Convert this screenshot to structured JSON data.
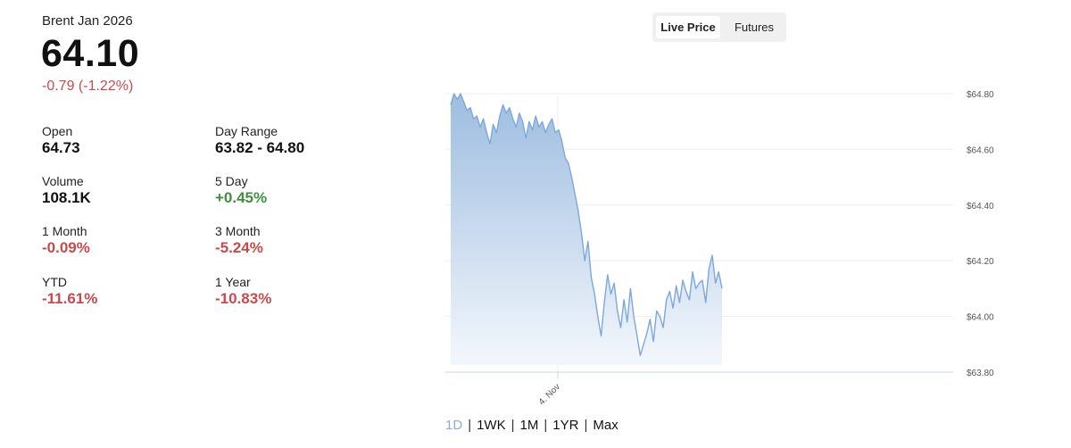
{
  "header": {
    "instrument": "Brent Jan 2026",
    "price": "64.10",
    "change": "-0.79 (-1.22%)"
  },
  "stats": [
    {
      "label": "Open",
      "value": "64.73",
      "tone": "plain"
    },
    {
      "label": "Day Range",
      "value": "63.82 - 64.80",
      "tone": "plain"
    },
    {
      "label": "Volume",
      "value": "108.1K",
      "tone": "plain"
    },
    {
      "label": "5 Day",
      "value": "+0.45%",
      "tone": "pos"
    },
    {
      "label": "1 Month",
      "value": "-0.09%",
      "tone": "neg"
    },
    {
      "label": "3 Month",
      "value": "-5.24%",
      "tone": "neg"
    },
    {
      "label": "YTD",
      "value": "-11.61%",
      "tone": "neg"
    },
    {
      "label": "1 Year",
      "value": "-10.83%",
      "tone": "neg"
    }
  ],
  "toggle": {
    "options": [
      "Live Price",
      "Futures"
    ],
    "selected": "Live Price"
  },
  "ranges": {
    "options": [
      "1D",
      "1WK",
      "1M",
      "1YR",
      "Max"
    ],
    "selected": "1D"
  },
  "colors": {
    "line": "#7ea7dc",
    "fill_top": "#9dbde0",
    "fill_bottom": "#f3f7fc",
    "negative": "#c94a4a",
    "positive": "#3f8f3f"
  },
  "chart_data": {
    "type": "area",
    "y_ticks": [
      "$64.80",
      "$64.60",
      "$64.40",
      "$64.20",
      "$64.00",
      "$63.80"
    ],
    "ylim": [
      63.8,
      64.8
    ],
    "x_tick_label": "4. Nov",
    "grid": true,
    "series": [
      {
        "values": [
          64.76,
          64.8,
          64.78,
          64.8,
          64.77,
          64.74,
          64.75,
          64.71,
          64.72,
          64.68,
          64.71,
          64.66,
          64.62,
          64.69,
          64.66,
          64.72,
          64.76,
          64.73,
          64.75,
          64.71,
          64.68,
          64.73,
          64.7,
          64.64,
          64.7,
          64.67,
          64.72,
          64.68,
          64.7,
          64.66,
          64.69,
          64.71,
          64.66,
          64.67,
          64.63,
          64.57,
          64.55,
          64.5,
          64.44,
          64.38,
          64.3,
          64.2,
          64.27,
          64.14,
          64.08,
          64.0,
          63.93,
          64.05,
          64.15,
          64.08,
          64.12,
          64.02,
          63.96,
          64.06,
          63.98,
          64.1,
          64.0,
          63.93,
          63.86,
          63.9,
          63.94,
          63.99,
          63.91,
          64.02,
          64.0,
          63.96,
          64.06,
          64.09,
          64.03,
          64.11,
          64.05,
          64.13,
          64.09,
          64.06,
          64.16,
          64.1,
          64.12,
          64.13,
          64.05,
          64.17,
          64.22,
          64.12,
          64.16,
          64.1
        ]
      }
    ]
  }
}
